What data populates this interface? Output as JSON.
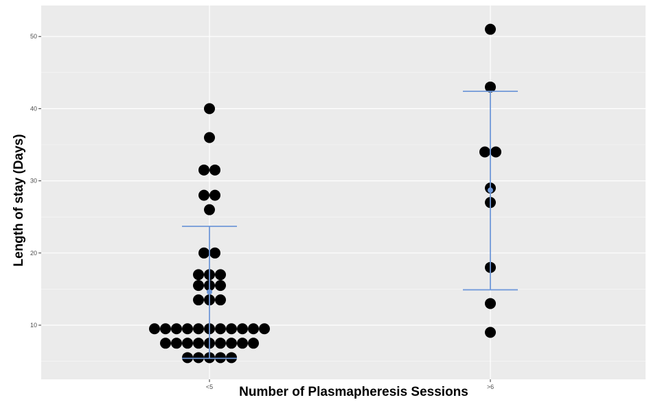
{
  "chart_data": {
    "type": "scatter",
    "subtype": "dotplot-with-mean-sd",
    "title": "",
    "xlabel": "Number of Plasmapheresis Sessions",
    "ylabel": "Length of stay (Days)",
    "categories": [
      "<5",
      ">6"
    ],
    "ylim": [
      3.5,
      55
    ],
    "yticks": [
      10,
      20,
      30,
      40,
      50
    ],
    "grid": true,
    "groups": [
      {
        "category": "<5",
        "values": [
          40,
          36,
          31.5,
          31.5,
          28,
          28,
          26,
          20,
          20,
          17,
          17,
          17,
          15.5,
          15.5,
          15.5,
          13.5,
          13.5,
          13.5,
          9.5,
          9.5,
          9.5,
          9.5,
          9.5,
          9.5,
          9.5,
          9.5,
          9.5,
          9.5,
          9.5,
          7.5,
          7.5,
          7.5,
          7.5,
          7.5,
          7.5,
          7.5,
          7.5,
          7.5,
          5.5,
          5.5,
          5.5,
          5.5,
          5.5
        ],
        "mean": 14.6,
        "upper": 23.7,
        "lower": 5.4
      },
      {
        "category": ">6",
        "values": [
          51,
          43,
          34,
          34,
          29,
          27,
          18,
          13,
          9
        ],
        "mean": 28.7,
        "upper": 42.4,
        "lower": 14.9
      }
    ],
    "colors": {
      "panel": "#ebebeb",
      "grid": "#ffffff",
      "points": "#000000",
      "errorbar": "#6f98d8",
      "ticktext": "#4d4d4d"
    }
  }
}
